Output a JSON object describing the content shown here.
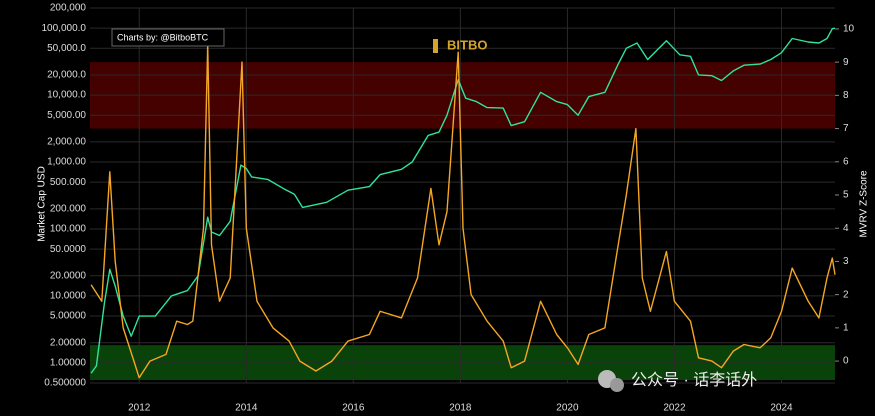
{
  "chart_data": {
    "type": "line",
    "annotations": {
      "credit": "Charts by: @BitboBTC",
      "logo": "BITBO",
      "watermark": "公众号 · 话李话外"
    },
    "ylabel": "Market Cap USD",
    "y2label": "MVRV Z-Score",
    "yscale": "log",
    "grid": true,
    "xlim": [
      2011.08,
      2025.0
    ],
    "xticks": [
      2012,
      2014,
      2016,
      2018,
      2020,
      2022,
      2024
    ],
    "ylim": [
      0.5,
      200000
    ],
    "yticks": [
      {
        "value": 0.5,
        "label": "0.500000"
      },
      {
        "value": 1,
        "label": "1.00000"
      },
      {
        "value": 2,
        "label": "2.00000"
      },
      {
        "value": 5,
        "label": "5.00000"
      },
      {
        "value": 10,
        "label": "10.0000"
      },
      {
        "value": 20,
        "label": "20.0000"
      },
      {
        "value": 50,
        "label": "50.0000"
      },
      {
        "value": 100,
        "label": "100.000"
      },
      {
        "value": 200,
        "label": "200.000"
      },
      {
        "value": 500,
        "label": "500.000"
      },
      {
        "value": 1000,
        "label": "1,000.00"
      },
      {
        "value": 2000,
        "label": "2,000.00"
      },
      {
        "value": 5000,
        "label": "5,000.00"
      },
      {
        "value": 10000,
        "label": "10,000.0"
      },
      {
        "value": 20000,
        "label": "20,000.0"
      },
      {
        "value": 50000,
        "label": "50,000.0"
      },
      {
        "value": 100000,
        "label": "100,000.0"
      },
      {
        "value": 200000,
        "label": "200,000"
      }
    ],
    "y2lim": [
      -0.66,
      10.63
    ],
    "y2ticks": [
      0,
      1,
      2,
      3,
      4,
      5,
      6,
      7,
      8,
      9,
      10
    ],
    "zones": [
      {
        "from": 7,
        "to": 9,
        "color": "#4d0000"
      },
      {
        "from": -0.57,
        "to": 0.48,
        "color": "#0b4a0b"
      }
    ],
    "series": [
      {
        "name": "Market Cap",
        "color": "#2fe39a",
        "axis": "y",
        "x": [
          2011.1,
          2011.2,
          2011.35,
          2011.45,
          2011.55,
          2011.7,
          2011.85,
          2012.0,
          2012.3,
          2012.6,
          2012.9,
          2013.1,
          2013.28,
          2013.35,
          2013.5,
          2013.7,
          2013.9,
          2014.0,
          2014.1,
          2014.4,
          2014.7,
          2014.9,
          2015.05,
          2015.5,
          2015.9,
          2016.3,
          2016.5,
          2016.9,
          2017.1,
          2017.4,
          2017.6,
          2017.75,
          2017.96,
          2018.1,
          2018.3,
          2018.5,
          2018.8,
          2018.95,
          2019.2,
          2019.5,
          2019.8,
          2020.0,
          2020.2,
          2020.4,
          2020.7,
          2020.95,
          2021.1,
          2021.3,
          2021.5,
          2021.85,
          2022.1,
          2022.3,
          2022.45,
          2022.7,
          2022.88,
          2023.1,
          2023.3,
          2023.6,
          2023.8,
          2024.0,
          2024.2,
          2024.5,
          2024.7,
          2024.85,
          2024.95,
          2025.0
        ],
        "values": [
          0.7,
          0.9,
          8,
          25,
          14,
          5,
          2.5,
          5,
          5,
          10,
          12,
          20,
          150,
          90,
          80,
          130,
          900,
          800,
          600,
          550,
          400,
          330,
          210,
          250,
          380,
          430,
          650,
          780,
          1000,
          2500,
          2800,
          5000,
          17000,
          9000,
          8000,
          6500,
          6400,
          3500,
          4000,
          11000,
          8000,
          7200,
          5000,
          9500,
          11000,
          29000,
          50000,
          60000,
          34000,
          65000,
          40000,
          38000,
          20000,
          19500,
          16500,
          23000,
          28000,
          29000,
          34000,
          43000,
          70000,
          62000,
          60000,
          70000,
          98000,
          100000
        ]
      },
      {
        "name": "MVRV Z-Score",
        "color": "#f5a623",
        "axis": "y2",
        "x": [
          2011.1,
          2011.3,
          2011.45,
          2011.55,
          2011.7,
          2011.9,
          2012.0,
          2012.2,
          2012.5,
          2012.7,
          2012.9,
          2013.0,
          2013.2,
          2013.28,
          2013.35,
          2013.5,
          2013.7,
          2013.92,
          2014.0,
          2014.2,
          2014.5,
          2014.8,
          2015.0,
          2015.3,
          2015.6,
          2015.9,
          2016.3,
          2016.5,
          2016.9,
          2017.2,
          2017.45,
          2017.6,
          2017.75,
          2017.96,
          2018.05,
          2018.2,
          2018.5,
          2018.8,
          2018.95,
          2019.2,
          2019.5,
          2019.8,
          2020.0,
          2020.2,
          2020.4,
          2020.7,
          2020.95,
          2021.1,
          2021.28,
          2021.4,
          2021.55,
          2021.85,
          2022.0,
          2022.3,
          2022.45,
          2022.7,
          2022.88,
          2023.1,
          2023.3,
          2023.6,
          2023.8,
          2024.0,
          2024.2,
          2024.5,
          2024.7,
          2024.85,
          2024.95,
          2025.0
        ],
        "values": [
          2.3,
          1.8,
          5.7,
          3,
          1,
          0,
          -0.5,
          0,
          0.2,
          1.2,
          1.1,
          1.2,
          4,
          9.5,
          3.5,
          1.8,
          2.5,
          9,
          4,
          1.8,
          1,
          0.6,
          0,
          -0.3,
          0,
          0.6,
          0.8,
          1.5,
          1.3,
          2.5,
          5.2,
          3.5,
          4.5,
          9.3,
          4,
          2,
          1.2,
          0.6,
          -0.2,
          0,
          1.8,
          0.8,
          0.4,
          -0.1,
          0.8,
          1,
          3.5,
          5,
          7,
          2.5,
          1.5,
          3.3,
          1.8,
          1.2,
          0.1,
          0,
          -0.2,
          0.3,
          0.5,
          0.4,
          0.7,
          1.5,
          2.8,
          1.8,
          1.3,
          2.5,
          3.1,
          2.6
        ]
      }
    ]
  }
}
